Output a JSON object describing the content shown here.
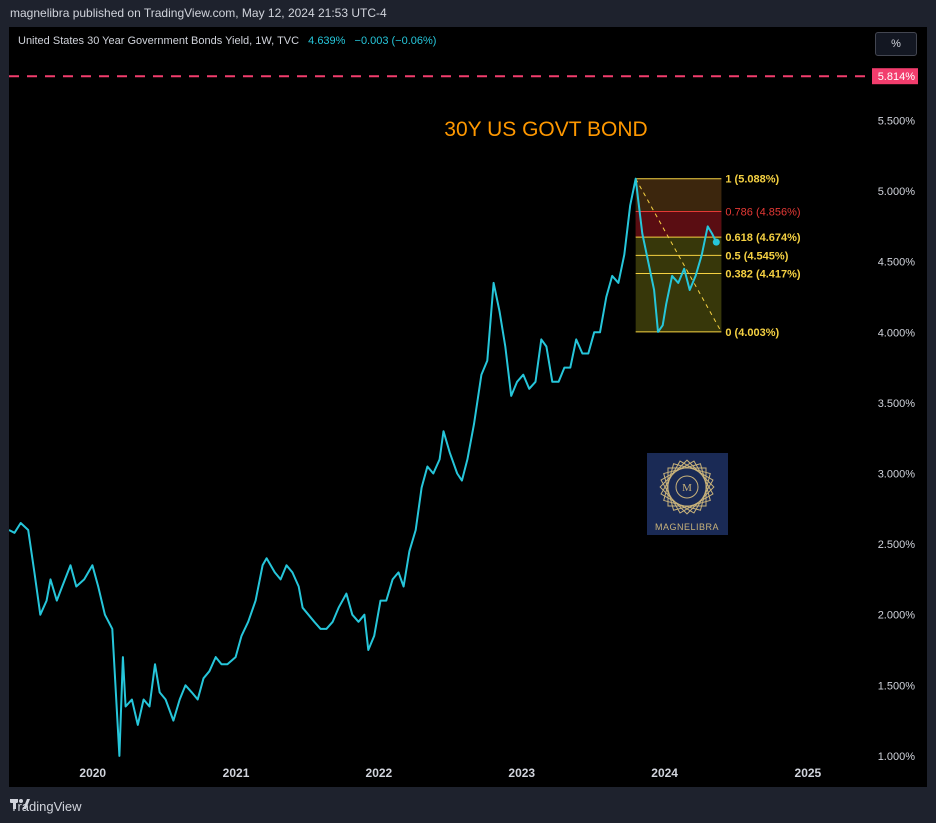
{
  "header": {
    "published": "magnelibra published on TradingView.com, May 12, 2024 21:53 UTC-4"
  },
  "symbol": {
    "title": "United States 30 Year Government Bonds Yield, 1W, TVC",
    "price": "4.639%",
    "change": "−0.003 (−0.06%)"
  },
  "scale_button": {
    "label": "%"
  },
  "footer": {
    "brand": "TradingView"
  },
  "watermark": {
    "text": "MAGNELIBRA"
  },
  "colors": {
    "line": "#26c6da",
    "dashed_level": "#f23d6d",
    "fib_yellow": "#f5d142",
    "fib_red": "#e53935",
    "title": "#ff9800"
  },
  "chart_data": {
    "type": "line",
    "title": "30Y US GOVT BOND",
    "y_tick_labels": [
      "1.000%",
      "1.500%",
      "2.000%",
      "2.500%",
      "3.000%",
      "3.500%",
      "4.000%",
      "4.500%",
      "5.000%",
      "5.500%"
    ],
    "x_tick_labels": [
      "2020",
      "2021",
      "2022",
      "2023",
      "2024",
      "2025"
    ],
    "ylim": [
      0.95,
      5.95
    ],
    "xlim": [
      "2019-06-01",
      "2025-06-01"
    ],
    "series": [
      {
        "values": [
          [
            "2019-06-01",
            2.6
          ],
          [
            "2019-06-15",
            2.58
          ],
          [
            "2019-07-01",
            2.65
          ],
          [
            "2019-07-20",
            2.6
          ],
          [
            "2019-08-05",
            2.3
          ],
          [
            "2019-08-20",
            2.0
          ],
          [
            "2019-09-05",
            2.1
          ],
          [
            "2019-09-15",
            2.25
          ],
          [
            "2019-10-01",
            2.1
          ],
          [
            "2019-10-15",
            2.2
          ],
          [
            "2019-11-05",
            2.35
          ],
          [
            "2019-11-20",
            2.2
          ],
          [
            "2019-12-10",
            2.25
          ],
          [
            "2019-12-31",
            2.35
          ],
          [
            "2020-01-15",
            2.2
          ],
          [
            "2020-02-01",
            2.0
          ],
          [
            "2020-02-20",
            1.9
          ],
          [
            "2020-03-09",
            1.0
          ],
          [
            "2020-03-18",
            1.7
          ],
          [
            "2020-03-25",
            1.35
          ],
          [
            "2020-04-10",
            1.4
          ],
          [
            "2020-04-25",
            1.22
          ],
          [
            "2020-05-10",
            1.4
          ],
          [
            "2020-05-25",
            1.35
          ],
          [
            "2020-06-08",
            1.65
          ],
          [
            "2020-06-20",
            1.45
          ],
          [
            "2020-07-05",
            1.4
          ],
          [
            "2020-07-25",
            1.25
          ],
          [
            "2020-08-10",
            1.4
          ],
          [
            "2020-08-25",
            1.5
          ],
          [
            "2020-09-10",
            1.45
          ],
          [
            "2020-09-25",
            1.4
          ],
          [
            "2020-10-10",
            1.55
          ],
          [
            "2020-10-25",
            1.6
          ],
          [
            "2020-11-10",
            1.7
          ],
          [
            "2020-11-25",
            1.65
          ],
          [
            "2020-12-10",
            1.65
          ],
          [
            "2020-12-31",
            1.7
          ],
          [
            "2021-01-15",
            1.85
          ],
          [
            "2021-02-01",
            1.95
          ],
          [
            "2021-02-20",
            2.1
          ],
          [
            "2021-03-10",
            2.35
          ],
          [
            "2021-03-20",
            2.4
          ],
          [
            "2021-04-10",
            2.3
          ],
          [
            "2021-04-25",
            2.25
          ],
          [
            "2021-05-10",
            2.35
          ],
          [
            "2021-05-25",
            2.3
          ],
          [
            "2021-06-10",
            2.2
          ],
          [
            "2021-06-20",
            2.05
          ],
          [
            "2021-07-05",
            2.0
          ],
          [
            "2021-07-20",
            1.95
          ],
          [
            "2021-08-05",
            1.9
          ],
          [
            "2021-08-20",
            1.9
          ],
          [
            "2021-09-05",
            1.95
          ],
          [
            "2021-09-20",
            2.05
          ],
          [
            "2021-10-10",
            2.15
          ],
          [
            "2021-10-25",
            2.0
          ],
          [
            "2021-11-10",
            1.95
          ],
          [
            "2021-11-25",
            2.0
          ],
          [
            "2021-12-05",
            1.75
          ],
          [
            "2021-12-20",
            1.85
          ],
          [
            "2022-01-05",
            2.1
          ],
          [
            "2022-01-20",
            2.1
          ],
          [
            "2022-02-05",
            2.25
          ],
          [
            "2022-02-20",
            2.3
          ],
          [
            "2022-03-05",
            2.2
          ],
          [
            "2022-03-20",
            2.45
          ],
          [
            "2022-04-05",
            2.6
          ],
          [
            "2022-04-20",
            2.9
          ],
          [
            "2022-05-05",
            3.05
          ],
          [
            "2022-05-20",
            3.0
          ],
          [
            "2022-06-05",
            3.1
          ],
          [
            "2022-06-15",
            3.3
          ],
          [
            "2022-07-01",
            3.15
          ],
          [
            "2022-07-20",
            3.0
          ],
          [
            "2022-08-01",
            2.95
          ],
          [
            "2022-08-15",
            3.1
          ],
          [
            "2022-09-01",
            3.35
          ],
          [
            "2022-09-20",
            3.7
          ],
          [
            "2022-10-05",
            3.8
          ],
          [
            "2022-10-21",
            4.35
          ],
          [
            "2022-11-05",
            4.15
          ],
          [
            "2022-11-20",
            3.9
          ],
          [
            "2022-12-05",
            3.55
          ],
          [
            "2022-12-20",
            3.65
          ],
          [
            "2023-01-05",
            3.7
          ],
          [
            "2023-01-20",
            3.6
          ],
          [
            "2023-02-05",
            3.65
          ],
          [
            "2023-02-20",
            3.95
          ],
          [
            "2023-03-05",
            3.9
          ],
          [
            "2023-03-20",
            3.65
          ],
          [
            "2023-04-05",
            3.65
          ],
          [
            "2023-04-20",
            3.75
          ],
          [
            "2023-05-05",
            3.75
          ],
          [
            "2023-05-20",
            3.95
          ],
          [
            "2023-06-05",
            3.85
          ],
          [
            "2023-06-20",
            3.85
          ],
          [
            "2023-07-05",
            4.0
          ],
          [
            "2023-07-20",
            4.0
          ],
          [
            "2023-08-05",
            4.25
          ],
          [
            "2023-08-20",
            4.4
          ],
          [
            "2023-09-05",
            4.35
          ],
          [
            "2023-09-20",
            4.55
          ],
          [
            "2023-10-05",
            4.9
          ],
          [
            "2023-10-19",
            5.088
          ],
          [
            "2023-10-25",
            4.95
          ],
          [
            "2023-11-05",
            4.7
          ],
          [
            "2023-11-20",
            4.5
          ],
          [
            "2023-12-05",
            4.3
          ],
          [
            "2023-12-15",
            4.003
          ],
          [
            "2023-12-27",
            4.05
          ],
          [
            "2024-01-05",
            4.2
          ],
          [
            "2024-01-20",
            4.4
          ],
          [
            "2024-02-05",
            4.35
          ],
          [
            "2024-02-20",
            4.45
          ],
          [
            "2024-03-05",
            4.3
          ],
          [
            "2024-03-20",
            4.4
          ],
          [
            "2024-04-05",
            4.55
          ],
          [
            "2024-04-20",
            4.75
          ],
          [
            "2024-05-01",
            4.7
          ],
          [
            "2024-05-12",
            4.639
          ]
        ]
      }
    ],
    "horizontal_level": {
      "value": 5.814,
      "label": "5.814%"
    },
    "fibonacci": {
      "start": [
        "2023-10-19",
        5.088
      ],
      "end": [
        "2024-05-25",
        4.003
      ],
      "levels": [
        {
          "label": "1 (5.088%)",
          "value": 5.088
        },
        {
          "label": "0.786 (4.856%)",
          "value": 4.856
        },
        {
          "label": "0.618 (4.674%)",
          "value": 4.674
        },
        {
          "label": "0.5 (4.545%)",
          "value": 4.545
        },
        {
          "label": "0.382 (4.417%)",
          "value": 4.417
        },
        {
          "label": "0 (4.003%)",
          "value": 4.003
        }
      ]
    }
  }
}
